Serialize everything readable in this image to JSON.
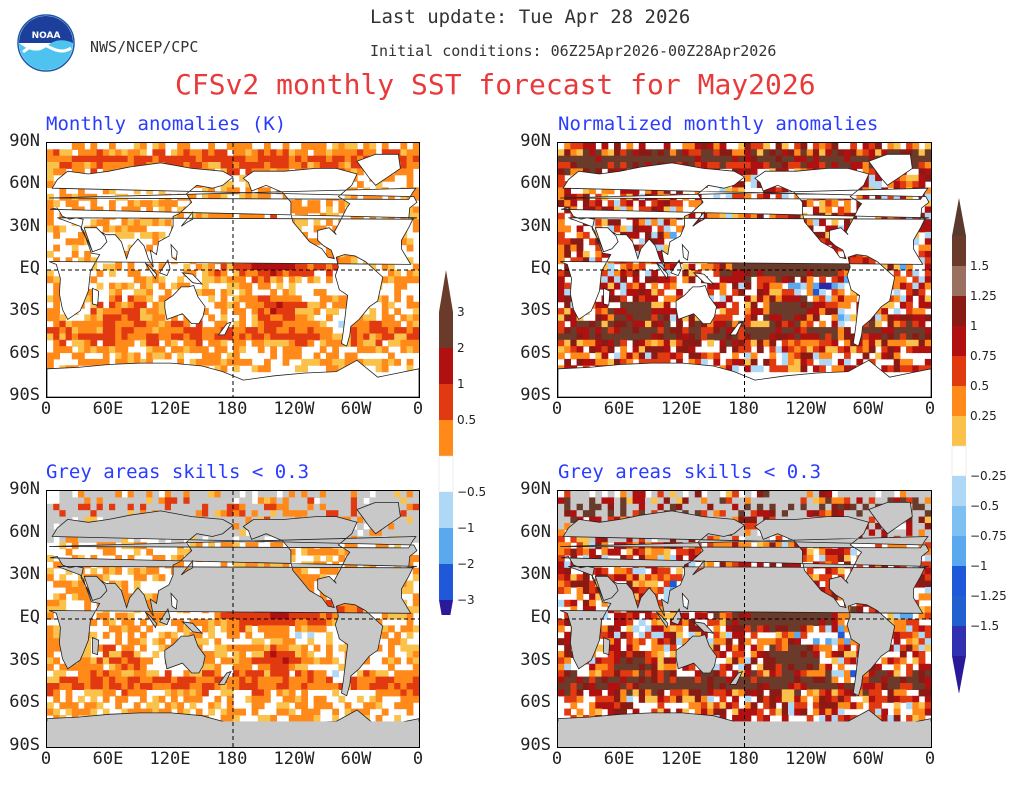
{
  "header": {
    "last_update": "Last update: Tue Apr 28 2026",
    "agency": "NWS/NCEP/CPC",
    "initial_conditions": "Initial conditions: 06Z25Apr2026-00Z28Apr2026",
    "title": "CFSv2 monthly SST forecast for May2026",
    "logo_text": "NOAA"
  },
  "colors": {
    "title_red": "#e83a3a",
    "panel_title_blue": "#2a3cff",
    "land_white": "#ffffff",
    "skill_grey": "#c8c8c8",
    "warm_pale": "#fbc24b",
    "warm_orange": "#ff8a1a",
    "warm_red": "#e23a10",
    "warm_dark": "#b01010",
    "warm_brown": "#6a3a2a",
    "cool_pale": "#aed8f5",
    "cool_mid": "#5aa8ee",
    "cool_dark": "#1f58d8",
    "cool_navy": "#2a2aa8"
  },
  "panels": [
    {
      "id": "tl",
      "title": "Monthly anomalies (K)",
      "grey_mask": false,
      "normalized": false
    },
    {
      "id": "tr",
      "title": "Normalized monthly anomalies",
      "grey_mask": false,
      "normalized": true
    },
    {
      "id": "bl",
      "title": "Grey areas skills < 0.3",
      "grey_mask": true,
      "normalized": false
    },
    {
      "id": "br",
      "title": "Grey areas skills < 0.3",
      "grey_mask": true,
      "normalized": true
    }
  ],
  "axes": {
    "lat_ticks": [
      "90N",
      "60N",
      "30N",
      "EQ",
      "30S",
      "60S",
      "90S"
    ],
    "lon_ticks": [
      "0",
      "60E",
      "120E",
      "180",
      "120W",
      "60W",
      "0"
    ]
  },
  "colorbar_left": {
    "labels": [
      "3",
      "2",
      "1",
      "0.5",
      "−0.5",
      "−1",
      "−2",
      "−3"
    ],
    "units": "K"
  },
  "colorbar_right": {
    "labels": [
      "1.5",
      "1.25",
      "1",
      "0.75",
      "0.5",
      "0.25",
      "−0.25",
      "−0.5",
      "−0.75",
      "−1",
      "−1.25",
      "−1.5"
    ]
  }
}
